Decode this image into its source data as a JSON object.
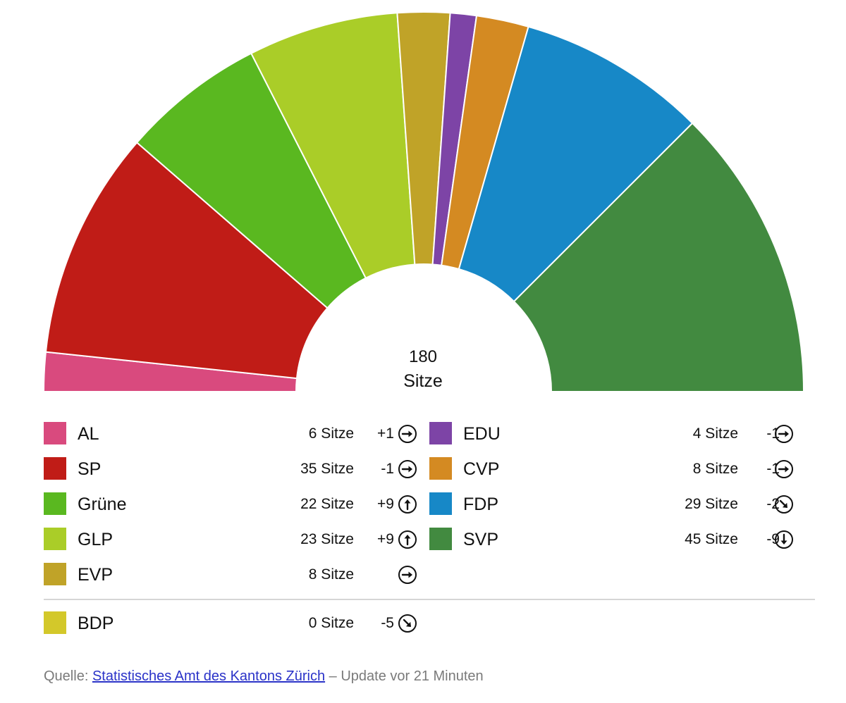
{
  "chart_data": {
    "type": "parliament-semicircle",
    "total": "180",
    "total_unit": "Sitze",
    "seat_unit": "Sitze",
    "parties": [
      {
        "name": "AL",
        "seats": 6,
        "seats_label": "6 Sitze",
        "change": "+1",
        "arrow": "right",
        "color": "#d94a7e"
      },
      {
        "name": "SP",
        "seats": 35,
        "seats_label": "35 Sitze",
        "change": "-1",
        "arrow": "right",
        "color": "#c01c17"
      },
      {
        "name": "Grüne",
        "seats": 22,
        "seats_label": "22 Sitze",
        "change": "+9",
        "arrow": "up",
        "color": "#5ab820"
      },
      {
        "name": "GLP",
        "seats": 23,
        "seats_label": "23 Sitze",
        "change": "+9",
        "arrow": "up",
        "color": "#aacd28"
      },
      {
        "name": "EVP",
        "seats": 8,
        "seats_label": "8 Sitze",
        "change": "",
        "arrow": "right",
        "color": "#c0a328"
      },
      {
        "name": "EDU",
        "seats": 4,
        "seats_label": "4 Sitze",
        "change": "-1",
        "arrow": "right",
        "color": "#7d44a6"
      },
      {
        "name": "CVP",
        "seats": 8,
        "seats_label": "8 Sitze",
        "change": "-1",
        "arrow": "right",
        "color": "#d48a22"
      },
      {
        "name": "FDP",
        "seats": 29,
        "seats_label": "29 Sitze",
        "change": "-2",
        "arrow": "down-right",
        "color": "#1788c7"
      },
      {
        "name": "SVP",
        "seats": 45,
        "seats_label": "45 Sitze",
        "change": "-9",
        "arrow": "down",
        "color": "#428a40"
      }
    ],
    "no_seats": [
      {
        "name": "BDP",
        "seats": 0,
        "seats_label": "0 Sitze",
        "change": "-5",
        "arrow": "down-right",
        "color": "#d3c82a"
      }
    ]
  },
  "footer": {
    "prefix": "Quelle: ",
    "link_text": "Statistisches Amt des Kantons Zürich",
    "suffix": " – Update vor 21 Minuten"
  }
}
